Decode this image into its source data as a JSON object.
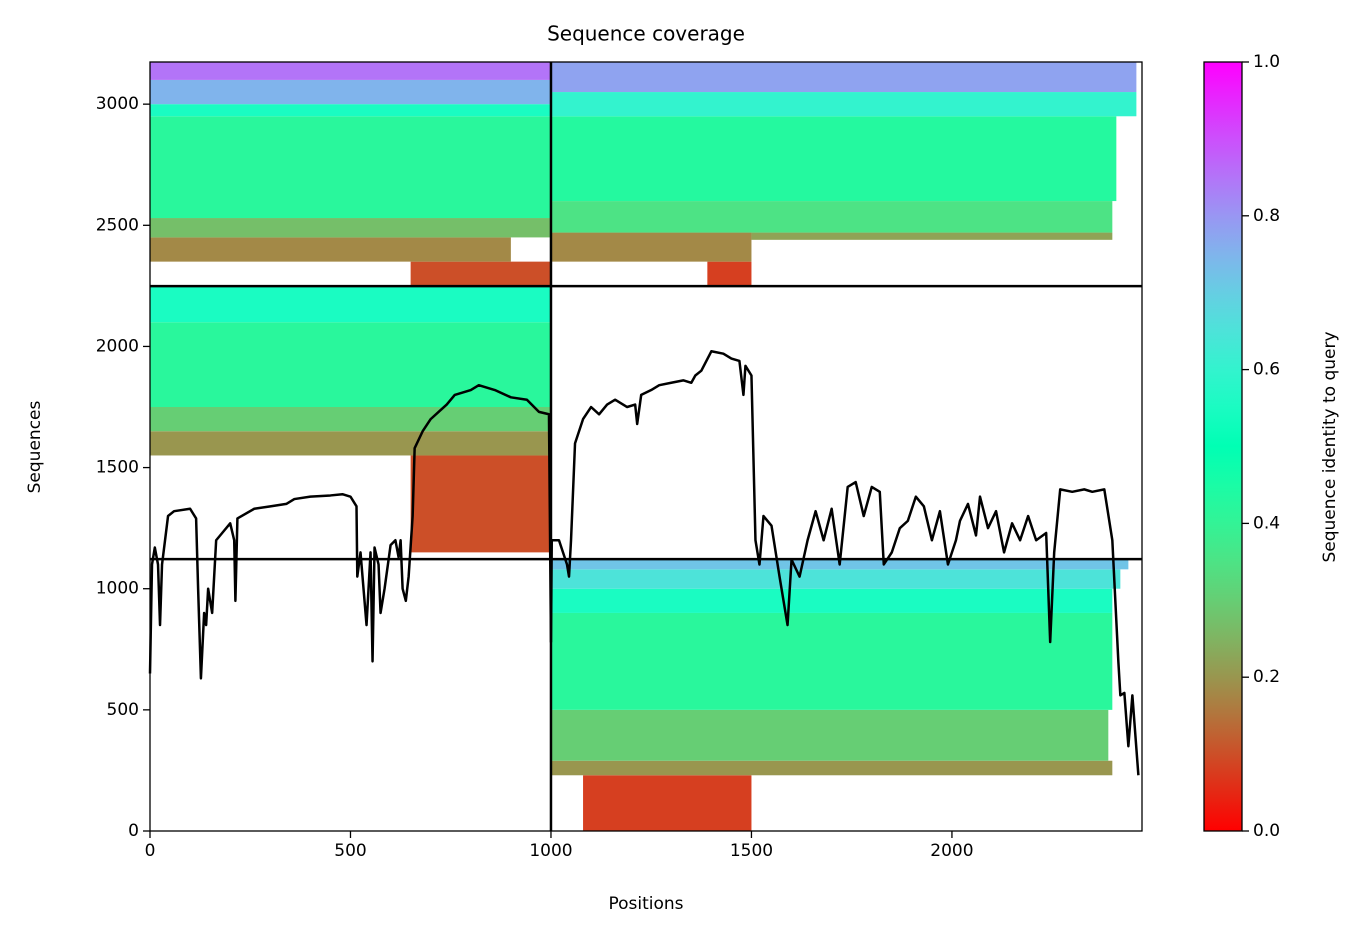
{
  "chart_data": {
    "type": "coverage",
    "title": "Sequence coverage",
    "x_label": "Positions",
    "y_label": "Sequences",
    "colorbar_label": "Sequence identity to query",
    "colormap": "rainbow_r",
    "xlim": [
      0,
      2474
    ],
    "ylim": [
      0,
      3174
    ],
    "xticks": [
      0,
      500,
      1000,
      1500,
      2000
    ],
    "yticks": [
      0,
      500,
      1000,
      1500,
      2000,
      2500,
      3000
    ],
    "clim": [
      0,
      1
    ],
    "cticks": [
      {
        "value": 0,
        "label": "0.0"
      },
      0.2,
      0.4,
      0.6,
      0.8,
      {
        "value": 1,
        "label": "1.0"
      }
    ],
    "blocks": {
      "x0": [
        1080,
        1000,
        1000,
        1000,
        1000,
        1000,
        1000,
        650,
        0,
        0,
        0,
        0,
        650,
        0,
        0,
        0,
        0,
        0,
        0,
        1390,
        1000,
        1500,
        1000,
        1000,
        1000,
        1000
      ],
      "x1": [
        1500,
        2400,
        2390,
        2400,
        2400,
        2420,
        2440,
        1000,
        1000,
        1000,
        1000,
        1000,
        1000,
        900,
        1000,
        1000,
        1000,
        1000,
        1000,
        1500,
        1500,
        2400,
        2400,
        2410,
        2460,
        2460
      ],
      "y0": [
        0,
        230,
        290,
        500,
        900,
        1000,
        1080,
        1150,
        1550,
        1650,
        1750,
        2100,
        2250,
        2350,
        2450,
        2530,
        2950,
        3000,
        3100,
        2250,
        2350,
        2440,
        2470,
        2600,
        2950,
        3050
      ],
      "y1": [
        230,
        290,
        500,
        900,
        1000,
        1080,
        1122,
        1550,
        1650,
        1750,
        2100,
        2249,
        2350,
        2450,
        2530,
        2950,
        3000,
        3100,
        3174,
        2350,
        2470,
        2470,
        2600,
        2950,
        3050,
        3174
      ],
      "identity": [
        0.08,
        0.2,
        0.3,
        0.42,
        0.55,
        0.65,
        0.72,
        0.1,
        0.2,
        0.3,
        0.42,
        0.55,
        0.1,
        0.18,
        0.27,
        0.42,
        0.55,
        0.75,
        0.85,
        0.08,
        0.18,
        0.22,
        0.35,
        0.43,
        0.6,
        0.78
      ]
    },
    "separators": {
      "x": [
        1000
      ],
      "y": [
        1122,
        2249
      ]
    },
    "coverage": {
      "x": [
        0,
        5,
        12,
        20,
        25,
        30,
        45,
        60,
        100,
        115,
        120,
        127,
        135,
        140,
        145,
        155,
        165,
        180,
        200,
        210,
        213,
        218,
        260,
        300,
        340,
        360,
        400,
        450,
        480,
        500,
        515,
        517,
        525,
        540,
        550,
        555,
        560,
        570,
        575,
        585,
        600,
        612,
        620,
        625,
        630,
        638,
        645,
        655,
        660,
        680,
        700,
        720,
        740,
        760,
        800,
        820,
        860,
        900,
        940,
        970,
        995,
        1000,
        1002,
        1020,
        1040,
        1045,
        1050,
        1060,
        1080,
        1100,
        1120,
        1140,
        1160,
        1190,
        1210,
        1215,
        1225,
        1250,
        1270,
        1300,
        1330,
        1350,
        1360,
        1375,
        1400,
        1430,
        1450,
        1470,
        1480,
        1485,
        1500,
        1510,
        1520,
        1530,
        1550,
        1570,
        1590,
        1600,
        1620,
        1640,
        1660,
        1680,
        1700,
        1720,
        1740,
        1760,
        1780,
        1800,
        1820,
        1830,
        1850,
        1870,
        1890,
        1910,
        1930,
        1950,
        1970,
        1990,
        2010,
        2020,
        2040,
        2060,
        2070,
        2090,
        2110,
        2130,
        2150,
        2170,
        2190,
        2210,
        2235,
        2245,
        2255,
        2270,
        2300,
        2330,
        2350,
        2380,
        2400,
        2415,
        2420,
        2430,
        2440,
        2450,
        2465
      ],
      "values": [
        650,
        1100,
        1170,
        1100,
        850,
        1100,
        1300,
        1320,
        1330,
        1290,
        1000,
        630,
        900,
        850,
        1000,
        900,
        1200,
        1230,
        1270,
        1200,
        950,
        1290,
        1330,
        1340,
        1350,
        1370,
        1380,
        1385,
        1390,
        1380,
        1340,
        1050,
        1150,
        850,
        1150,
        700,
        1170,
        1100,
        900,
        1000,
        1180,
        1200,
        1130,
        1200,
        1000,
        950,
        1050,
        1300,
        1580,
        1650,
        1700,
        1730,
        1760,
        1800,
        1820,
        1840,
        1820,
        1790,
        1780,
        1730,
        1720,
        780,
        1200,
        1200,
        1100,
        1050,
        1200,
        1600,
        1700,
        1750,
        1720,
        1760,
        1780,
        1750,
        1760,
        1680,
        1800,
        1820,
        1840,
        1850,
        1860,
        1850,
        1880,
        1900,
        1980,
        1970,
        1950,
        1940,
        1800,
        1920,
        1880,
        1200,
        1100,
        1300,
        1260,
        1050,
        850,
        1120,
        1050,
        1200,
        1320,
        1200,
        1330,
        1100,
        1420,
        1440,
        1300,
        1420,
        1400,
        1100,
        1150,
        1250,
        1280,
        1380,
        1340,
        1200,
        1320,
        1100,
        1200,
        1280,
        1350,
        1220,
        1380,
        1250,
        1320,
        1150,
        1270,
        1200,
        1300,
        1200,
        1230,
        780,
        1150,
        1410,
        1400,
        1410,
        1400,
        1410,
        1200,
        700,
        560,
        570,
        350,
        560,
        230
      ]
    }
  }
}
